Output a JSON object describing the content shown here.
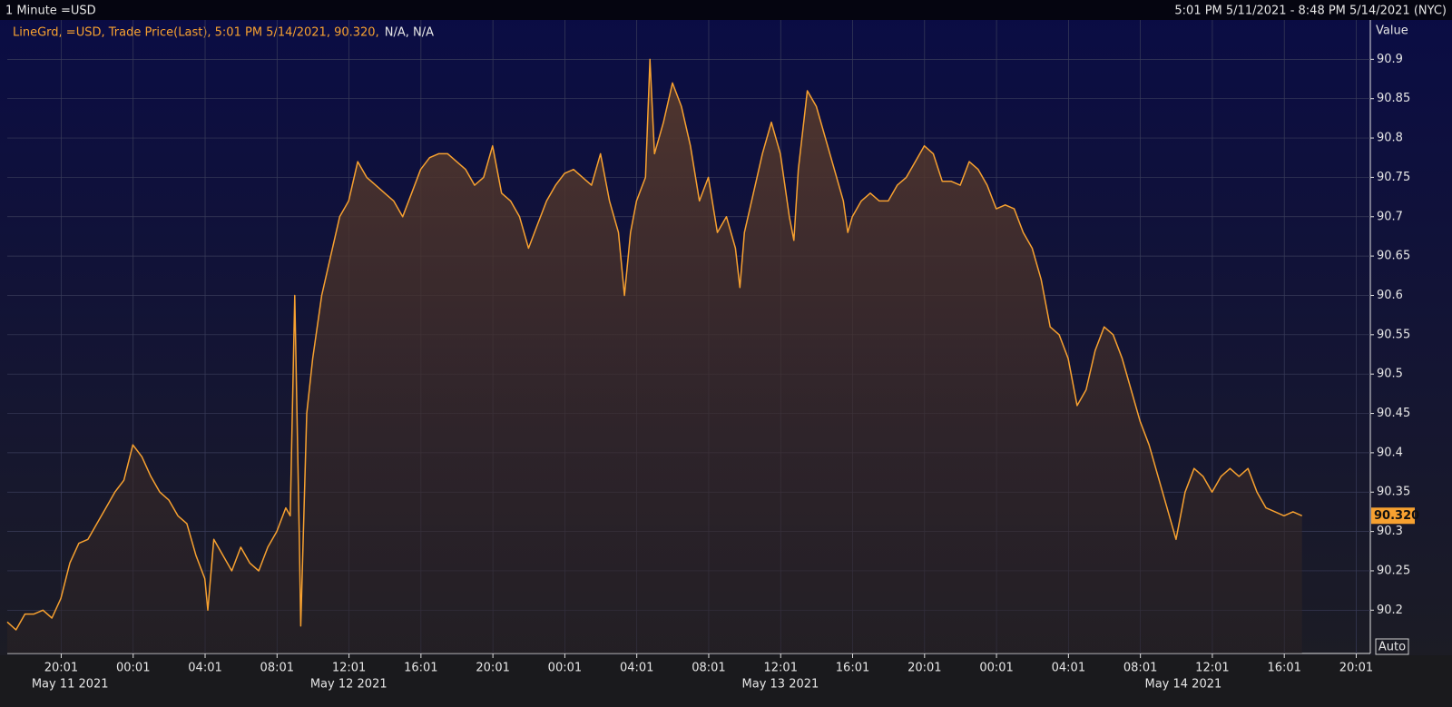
{
  "chart_data": {
    "type": "line",
    "header_left": "1 Minute =USD",
    "header_right": "5:01 PM 5/11/2021 - 8:48 PM 5/14/2021 (NYC)",
    "legend_text": "LineGrd, =USD, Trade Price(Last), 5:01 PM 5/14/2021, 90.320,",
    "legend_extra": "N/A, N/A",
    "y_axis_label": "Value",
    "auto_button": "Auto",
    "last_value_label": "90.320",
    "color": "#f7a130",
    "grid": true,
    "x": [
      "2021-05-11T17:01",
      "2021-05-11T17:30",
      "2021-05-11T18:00",
      "2021-05-11T18:30",
      "2021-05-11T19:00",
      "2021-05-11T19:30",
      "2021-05-11T20:00",
      "2021-05-11T20:30",
      "2021-05-11T21:00",
      "2021-05-11T21:30",
      "2021-05-11T22:00",
      "2021-05-11T22:30",
      "2021-05-11T23:00",
      "2021-05-11T23:30",
      "2021-05-12T00:00",
      "2021-05-12T00:30",
      "2021-05-12T01:00",
      "2021-05-12T01:30",
      "2021-05-12T02:00",
      "2021-05-12T02:30",
      "2021-05-12T03:00",
      "2021-05-12T03:30",
      "2021-05-12T04:00",
      "2021-05-12T04:10",
      "2021-05-12T04:30",
      "2021-05-12T05:00",
      "2021-05-12T05:30",
      "2021-05-12T06:00",
      "2021-05-12T06:30",
      "2021-05-12T07:00",
      "2021-05-12T07:30",
      "2021-05-12T08:00",
      "2021-05-12T08:30",
      "2021-05-12T08:45",
      "2021-05-12T09:00",
      "2021-05-12T09:15",
      "2021-05-12T09:20",
      "2021-05-12T09:40",
      "2021-05-12T10:00",
      "2021-05-12T10:30",
      "2021-05-12T11:00",
      "2021-05-12T11:30",
      "2021-05-12T12:00",
      "2021-05-12T12:30",
      "2021-05-12T13:00",
      "2021-05-12T13:30",
      "2021-05-12T14:00",
      "2021-05-12T14:30",
      "2021-05-12T15:00",
      "2021-05-12T15:30",
      "2021-05-12T16:00",
      "2021-05-12T16:30",
      "2021-05-12T17:00",
      "2021-05-12T17:30",
      "2021-05-12T18:00",
      "2021-05-12T18:30",
      "2021-05-12T19:00",
      "2021-05-12T19:30",
      "2021-05-12T20:00",
      "2021-05-12T20:30",
      "2021-05-12T21:00",
      "2021-05-12T21:30",
      "2021-05-12T22:00",
      "2021-05-12T22:30",
      "2021-05-12T23:00",
      "2021-05-12T23:30",
      "2021-05-13T00:00",
      "2021-05-13T00:30",
      "2021-05-13T01:00",
      "2021-05-13T01:30",
      "2021-05-13T02:00",
      "2021-05-13T02:30",
      "2021-05-13T03:00",
      "2021-05-13T03:20",
      "2021-05-13T03:40",
      "2021-05-13T04:00",
      "2021-05-13T04:30",
      "2021-05-13T04:45",
      "2021-05-13T05:00",
      "2021-05-13T05:30",
      "2021-05-13T06:00",
      "2021-05-13T06:30",
      "2021-05-13T07:00",
      "2021-05-13T07:30",
      "2021-05-13T08:00",
      "2021-05-13T08:30",
      "2021-05-13T09:00",
      "2021-05-13T09:30",
      "2021-05-13T09:45",
      "2021-05-13T10:00",
      "2021-05-13T10:30",
      "2021-05-13T11:00",
      "2021-05-13T11:30",
      "2021-05-13T12:00",
      "2021-05-13T12:30",
      "2021-05-13T12:45",
      "2021-05-13T13:00",
      "2021-05-13T13:30",
      "2021-05-13T14:00",
      "2021-05-13T14:30",
      "2021-05-13T15:00",
      "2021-05-13T15:30",
      "2021-05-13T15:45",
      "2021-05-13T16:00",
      "2021-05-13T16:30",
      "2021-05-13T17:00",
      "2021-05-13T17:30",
      "2021-05-13T18:00",
      "2021-05-13T18:30",
      "2021-05-13T19:00",
      "2021-05-13T19:30",
      "2021-05-13T20:00",
      "2021-05-13T20:30",
      "2021-05-13T21:00",
      "2021-05-13T21:30",
      "2021-05-13T22:00",
      "2021-05-13T22:30",
      "2021-05-13T23:00",
      "2021-05-13T23:30",
      "2021-05-14T00:00",
      "2021-05-14T00:30",
      "2021-05-14T01:00",
      "2021-05-14T01:30",
      "2021-05-14T02:00",
      "2021-05-14T02:30",
      "2021-05-14T03:00",
      "2021-05-14T03:30",
      "2021-05-14T04:00",
      "2021-05-14T04:30",
      "2021-05-14T05:00",
      "2021-05-14T05:30",
      "2021-05-14T06:00",
      "2021-05-14T06:30",
      "2021-05-14T07:00",
      "2021-05-14T07:30",
      "2021-05-14T08:00",
      "2021-05-14T08:30",
      "2021-05-14T09:00",
      "2021-05-14T09:30",
      "2021-05-14T10:00",
      "2021-05-14T10:30",
      "2021-05-14T11:00",
      "2021-05-14T11:30",
      "2021-05-14T12:00",
      "2021-05-14T12:30",
      "2021-05-14T13:00",
      "2021-05-14T13:30",
      "2021-05-14T14:00",
      "2021-05-14T14:30",
      "2021-05-14T15:00",
      "2021-05-14T15:30",
      "2021-05-14T16:00",
      "2021-05-14T16:30",
      "2021-05-14T17:00"
    ],
    "values": [
      90.185,
      90.175,
      90.195,
      90.195,
      90.2,
      90.19,
      90.215,
      90.26,
      90.285,
      90.29,
      90.31,
      90.33,
      90.35,
      90.365,
      90.41,
      90.395,
      90.37,
      90.35,
      90.34,
      90.32,
      90.31,
      90.27,
      90.24,
      90.2,
      90.29,
      90.27,
      90.25,
      90.28,
      90.26,
      90.25,
      90.28,
      90.3,
      90.33,
      90.32,
      90.6,
      90.3,
      90.18,
      90.45,
      90.52,
      90.6,
      90.65,
      90.7,
      90.72,
      90.77,
      90.75,
      90.74,
      90.73,
      90.72,
      90.7,
      90.73,
      90.76,
      90.775,
      90.78,
      90.78,
      90.77,
      90.76,
      90.74,
      90.75,
      90.79,
      90.73,
      90.72,
      90.7,
      90.66,
      90.69,
      90.72,
      90.74,
      90.755,
      90.76,
      90.75,
      90.74,
      90.78,
      90.72,
      90.68,
      90.6,
      90.68,
      90.72,
      90.75,
      90.9,
      90.78,
      90.82,
      90.87,
      90.84,
      90.79,
      90.72,
      90.75,
      90.68,
      90.7,
      90.66,
      90.61,
      90.68,
      90.73,
      90.78,
      90.82,
      90.78,
      90.7,
      90.67,
      90.76,
      90.86,
      90.84,
      90.8,
      90.76,
      90.72,
      90.68,
      90.7,
      90.72,
      90.73,
      90.72,
      90.72,
      90.74,
      90.75,
      90.77,
      90.79,
      90.78,
      90.745,
      90.745,
      90.74,
      90.77,
      90.76,
      90.74,
      90.71,
      90.715,
      90.71,
      90.68,
      90.66,
      90.62,
      90.56,
      90.55,
      90.52,
      90.46,
      90.48,
      90.53,
      90.56,
      90.55,
      90.52,
      90.48,
      90.44,
      90.41,
      90.37,
      90.33,
      90.29,
      90.35,
      90.38,
      90.37,
      90.35,
      90.37,
      90.38,
      90.37,
      90.38,
      90.35,
      90.33,
      90.325,
      90.32,
      90.325,
      90.32
    ],
    "xlim": [
      "2021-05-11T17:01",
      "2021-05-14T20:48"
    ],
    "xticks": [
      {
        "value": "2021-05-11T20:01",
        "label": "20:01"
      },
      {
        "value": "2021-05-12T00:01",
        "label": "00:01"
      },
      {
        "value": "2021-05-12T04:01",
        "label": "04:01"
      },
      {
        "value": "2021-05-12T08:01",
        "label": "08:01"
      },
      {
        "value": "2021-05-12T12:01",
        "label": "12:01"
      },
      {
        "value": "2021-05-12T16:01",
        "label": "16:01"
      },
      {
        "value": "2021-05-12T20:01",
        "label": "20:01"
      },
      {
        "value": "2021-05-13T00:01",
        "label": "00:01"
      },
      {
        "value": "2021-05-13T04:01",
        "label": "04:01"
      },
      {
        "value": "2021-05-13T08:01",
        "label": "08:01"
      },
      {
        "value": "2021-05-13T12:01",
        "label": "12:01"
      },
      {
        "value": "2021-05-13T16:01",
        "label": "16:01"
      },
      {
        "value": "2021-05-13T20:01",
        "label": "20:01"
      },
      {
        "value": "2021-05-14T00:01",
        "label": "00:01"
      },
      {
        "value": "2021-05-14T04:01",
        "label": "04:01"
      },
      {
        "value": "2021-05-14T08:01",
        "label": "08:01"
      },
      {
        "value": "2021-05-14T12:01",
        "label": "12:01"
      },
      {
        "value": "2021-05-14T16:01",
        "label": "16:01"
      },
      {
        "value": "2021-05-14T20:01",
        "label": "20:01"
      }
    ],
    "day_labels": [
      "May 11 2021",
      "May 12 2021",
      "May 13 2021",
      "May 14 2021"
    ],
    "ylim": [
      90.145,
      90.95
    ],
    "yticks": [
      90.2,
      90.25,
      90.3,
      90.35,
      90.4,
      90.45,
      90.5,
      90.55,
      90.6,
      90.65,
      90.7,
      90.75,
      90.8,
      90.85,
      90.9
    ]
  }
}
